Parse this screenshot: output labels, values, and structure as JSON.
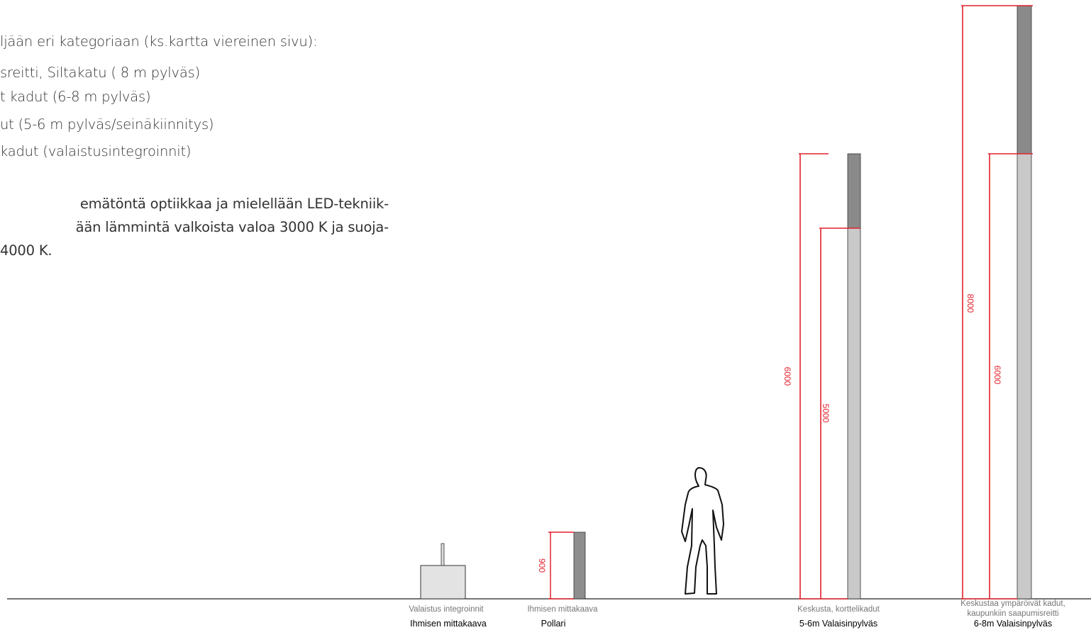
{
  "intro": {
    "lines": [
      "ljään  eri kategoriaan (ks.kartta viereinen sivu):",
      "sreitti, Siltakatu ( 8 m pylväs)",
      "t kadut (6-8 m pylväs)",
      "ut (5-6 m pylväs/seinäkiinnitys)",
      " kadut (valaistusintegroinnit)"
    ],
    "paragraph": [
      "emätöntä optiikkaa ja mielellään LED-tekniik-",
      "ään lämmintä valkoista valoa 3000 K ja suoja-",
      "4000 K."
    ]
  },
  "items": {
    "integration": {
      "caption": "Valaistus integroinnit",
      "title": "Ihmisen mittakaava"
    },
    "bollard": {
      "caption": "Ihmisen mittakaava",
      "title": "Pollari",
      "dimension": "900"
    },
    "pole_5_6": {
      "caption": "Keskusta, korttelikadut",
      "title": "5-6m Valaisinpylväs",
      "dim_outer": "6000",
      "dim_inner": "5000"
    },
    "pole_6_8": {
      "caption_line1": "Keskustaa ympäröivät kadut,",
      "caption_line2": "kaupunkiin saapumisreitti",
      "title": "6-8m Valaisinpylväs",
      "dim_outer": "8000",
      "dim_inner": "6000"
    }
  },
  "colors": {
    "dimension": "#e2202a",
    "pole_dark": "#8a8a8a",
    "pole_light": "#c8c8c8"
  }
}
